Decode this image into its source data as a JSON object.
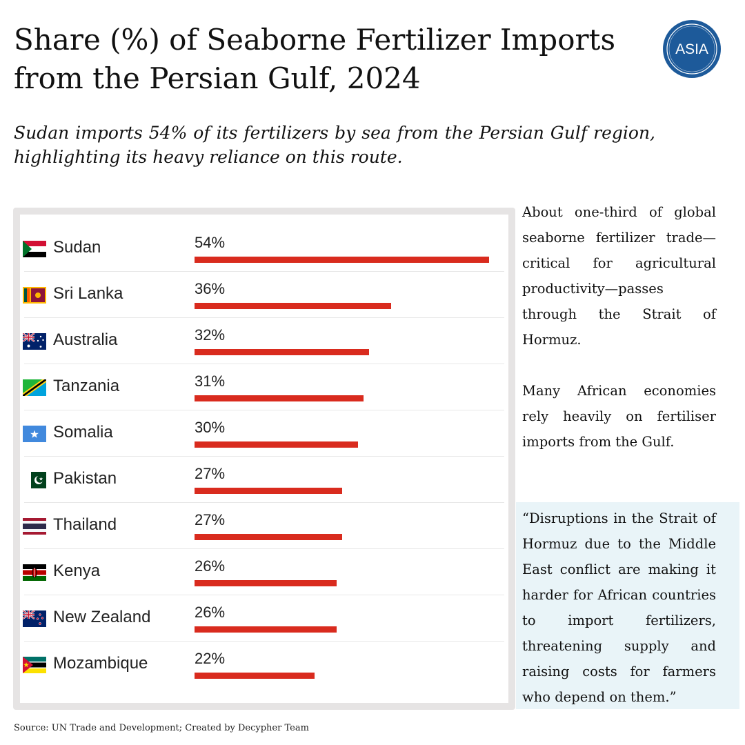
{
  "header": {
    "title": "Share (%) of Seaborne Fertilizer Imports from the Persian Gulf, 2024",
    "subtitle": "Sudan imports 54% of its fertilizers by sea from the Persian Gulf region, highlighting its heavy reliance on this route.",
    "logo_text": "ASIA"
  },
  "chart_data": {
    "type": "bar",
    "orientation": "horizontal",
    "categories": [
      "Sudan",
      "Sri Lanka",
      "Australia",
      "Tanzania",
      "Somalia",
      "Pakistan",
      "Thailand",
      "Kenya",
      "New Zealand",
      "Mozambique"
    ],
    "values": [
      54,
      36,
      32,
      31,
      30,
      27,
      27,
      26,
      26,
      22
    ],
    "value_labels": [
      "54%",
      "36%",
      "32%",
      "31%",
      "30%",
      "27%",
      "27%",
      "26%",
      "26%",
      "22%"
    ],
    "bar_color": "#d92b1e",
    "xlim": [
      0,
      54
    ]
  },
  "side": {
    "paragraph1": "About one-third of global seaborne fertilizer trade—critical for agricultural productivity—passes through the Strait of Hormuz.",
    "paragraph2": "Many African economies rely heavily on fertiliser imports from the Gulf.",
    "quote": "“Disruptions in the Strait of Hormuz due to the Middle East conflict are making it harder for African countries to import fertilizers, threatening supply and raising costs for farmers who depend on them.”"
  },
  "footer": {
    "source": "Source: UN Trade and Development; Created by Decypher Team"
  },
  "colors": {
    "bar": "#d92b1e",
    "frame": "#e6e4e4",
    "quote_bg": "#e9f4f8",
    "logo": "#1d5a9a"
  },
  "flags": [
    "sudan-flag-icon",
    "sri-lanka-flag-icon",
    "australia-flag-icon",
    "tanzania-flag-icon",
    "somalia-flag-icon",
    "pakistan-flag-icon",
    "thailand-flag-icon",
    "kenya-flag-icon",
    "new-zealand-flag-icon",
    "mozambique-flag-icon"
  ]
}
